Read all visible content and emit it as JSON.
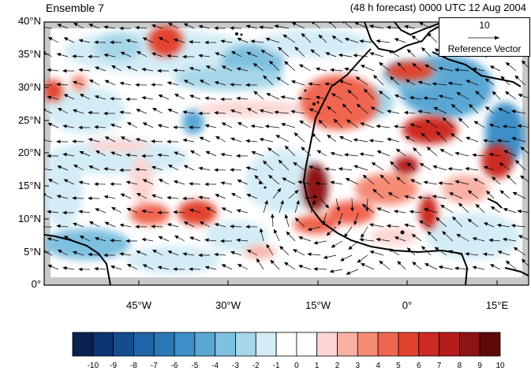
{
  "title_left": "Ensemble 7",
  "title_right": "(48 h forecast) 0000 UTC 12 Aug 2004",
  "lat_labels": [
    "40°N",
    "35°N",
    "30°N",
    "25°N",
    "20°N",
    "15°N",
    "10°N",
    "5°N",
    "0°"
  ],
  "lon_labels": [
    "45°W",
    "30°W",
    "15°W",
    "0°",
    "15°E"
  ],
  "reference_vector": {
    "magnitude": "10",
    "label": "Reference Vector"
  },
  "colorbar": {
    "labels": [
      "-10",
      "-9",
      "-8",
      "-7",
      "-6",
      "-5",
      "-4",
      "-3",
      "-2",
      "-1",
      "0",
      "1",
      "2",
      "3",
      "4",
      "5",
      "6",
      "7",
      "8",
      "9",
      "10"
    ],
    "colors": [
      "#08214f",
      "#0b3470",
      "#154d8c",
      "#1f64a8",
      "#2a78b8",
      "#3d8fc8",
      "#5aa7d4",
      "#7ec0df",
      "#a6d6e8",
      "#d3ecf5",
      "#ffffff",
      "#ffffff",
      "#fbd6d3",
      "#f7b0a3",
      "#f58a75",
      "#f0654f",
      "#e3422f",
      "#cc2a22",
      "#b41d1e",
      "#8e1315",
      "#5f0a0a"
    ]
  },
  "colors": {
    "land_outline": "#000000",
    "vector": "#000000",
    "missing": "#c8c8c8"
  }
}
